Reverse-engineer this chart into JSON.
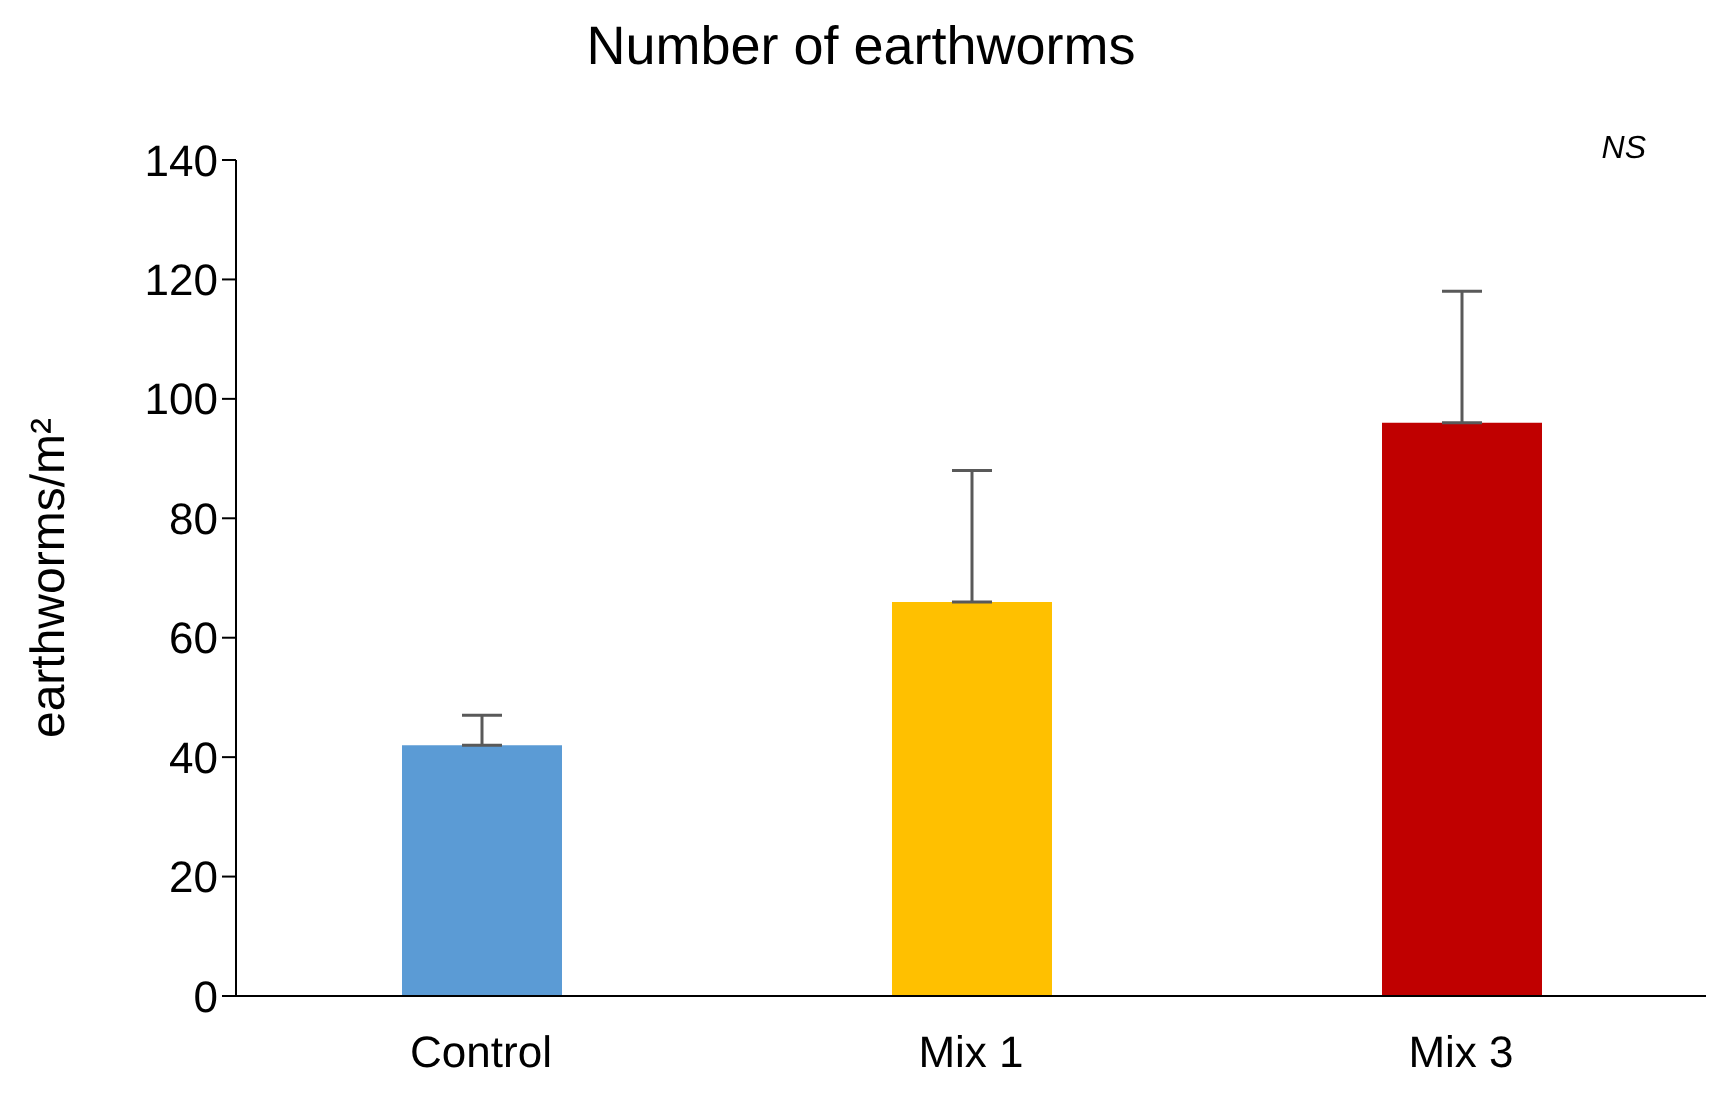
{
  "chart_data": {
    "type": "bar",
    "title": "Number of earthworms",
    "ylabel": "earthworms/m²",
    "categories": [
      "Control",
      "Mix 1",
      "Mix 3"
    ],
    "values": [
      42,
      66,
      96
    ],
    "colors": [
      "#5b9bd5",
      "#ffc000",
      "#c00000"
    ],
    "errors": [
      [
        42,
        47
      ],
      [
        66,
        88
      ],
      [
        96,
        118
      ]
    ],
    "ylim": [
      0,
      140
    ],
    "yticks": [
      0,
      20,
      40,
      60,
      80,
      100,
      120,
      140
    ],
    "annotations": [
      "NS"
    ]
  }
}
